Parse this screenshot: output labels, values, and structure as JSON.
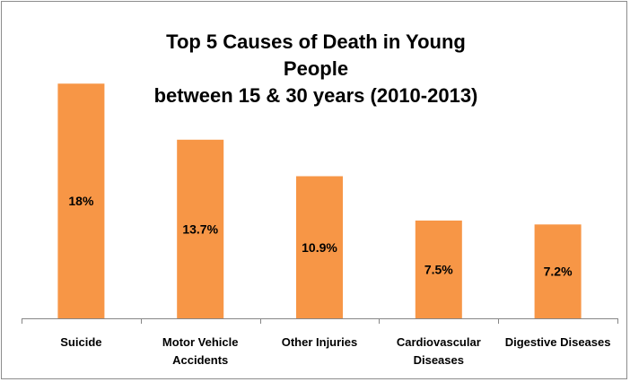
{
  "chart_data": {
    "type": "bar",
    "title_lines": [
      "Top 5 Causes of Death in Young People",
      "between 15 & 30 years (2010-2013)"
    ],
    "categories": [
      [
        "Suicide"
      ],
      [
        "Motor Vehicle",
        "Accidents"
      ],
      [
        "Other Injuries"
      ],
      [
        "Cardiovascular",
        "Diseases"
      ],
      [
        "Digestive Diseases"
      ]
    ],
    "values": [
      18,
      13.7,
      10.9,
      7.5,
      7.2
    ],
    "data_labels": [
      "18%",
      "13.7%",
      "10.9%",
      "7.5%",
      "7.2%"
    ],
    "ylim": [
      0,
      18.5
    ],
    "grid": false,
    "legend": "none",
    "bar_color": "#f79646"
  }
}
